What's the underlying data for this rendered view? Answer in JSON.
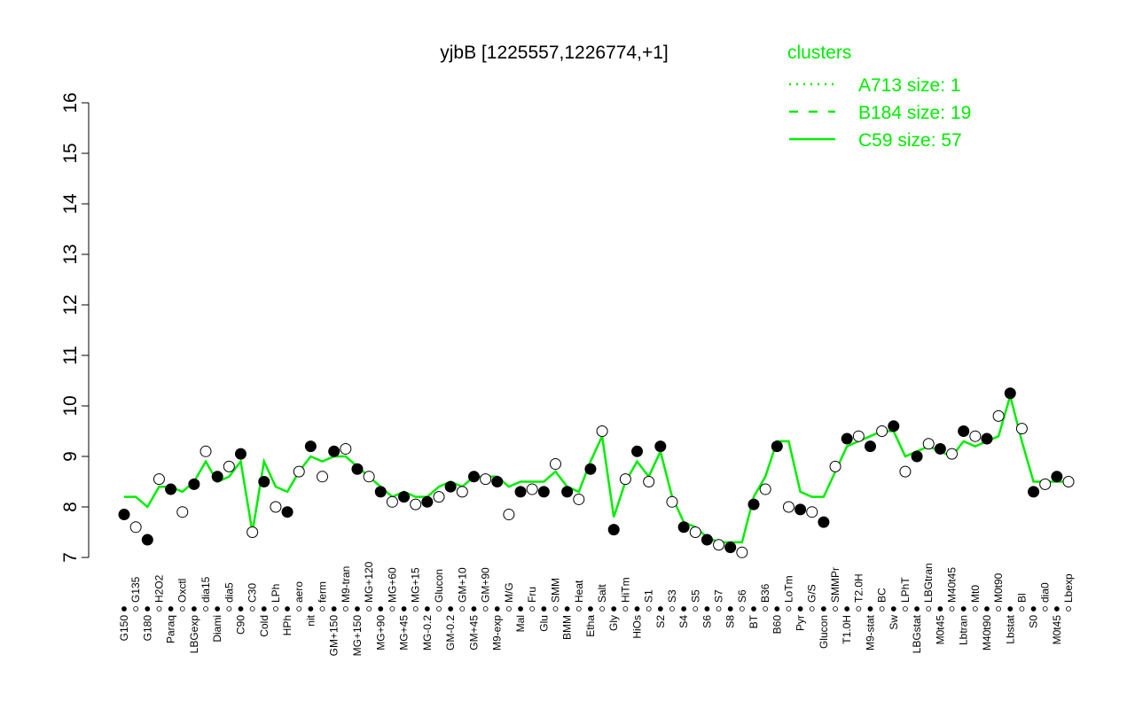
{
  "chart_data": {
    "type": "line",
    "title": "yjbB [1225557,1226774,+1]",
    "legend_title": "clusters",
    "legend": [
      {
        "label": "A713 size: 1",
        "style": "dotted",
        "color": "#00ee00"
      },
      {
        "label": "B184 size: 19",
        "style": "dashed",
        "color": "#00ee00"
      },
      {
        "label": "C59 size: 57",
        "style": "solid",
        "color": "#00ee00"
      }
    ],
    "ylim": [
      7,
      16
    ],
    "yticks": [
      7,
      8,
      9,
      10,
      11,
      12,
      13,
      14,
      15,
      16
    ],
    "categories": [
      "G150",
      "G135",
      "G180",
      "H2O2",
      "Paraq",
      "Oxctl",
      "LBGexp",
      "dia15",
      "Diami",
      "dia5",
      "C90",
      "C30",
      "Cold",
      "LPh",
      "HPh",
      "aero",
      "nit",
      "ferm",
      "GM+150",
      "M9-tran",
      "MG+150",
      "MG+120",
      "MG+90",
      "MG+60",
      "MG+45",
      "MG+15",
      "MG-0.2",
      "Glucon",
      "GM-0.2",
      "GM+10",
      "GM+45",
      "GM+90",
      "M9-exp",
      "M/G",
      "Mal",
      "Fru",
      "Glu",
      "SMM",
      "BMM",
      "Heat",
      "Etha",
      "Salt",
      "Gly",
      "HiTm",
      "HiOs",
      "S1",
      "S2",
      "S3",
      "S4",
      "S5",
      "S6",
      "S7",
      "S8",
      "S6",
      "BT",
      "B36",
      "B60",
      "LoTm",
      "Pyr",
      "G/S",
      "Glucon",
      "SMMPr",
      "T1.0H",
      "T2.0H",
      "M9-stat",
      "BC",
      "Sw",
      "LPhT",
      "LBGstat",
      "LBGtran",
      "M0t45",
      "M40t45",
      "Lbtran",
      "Mt0",
      "M40t90",
      "M0t90",
      "Lbstat",
      "Bl",
      "S0",
      "dia0",
      "M0t45",
      "Lbexp"
    ],
    "series": [
      {
        "name": "expression",
        "color": "#000000",
        "values": [
          7.85,
          7.6,
          7.35,
          8.55,
          8.35,
          7.9,
          8.45,
          9.1,
          8.6,
          8.8,
          9.05,
          7.5,
          8.5,
          8.0,
          7.9,
          8.7,
          9.2,
          8.6,
          9.1,
          9.15,
          8.75,
          8.6,
          8.3,
          8.1,
          8.2,
          8.05,
          8.1,
          8.2,
          8.4,
          8.3,
          8.6,
          8.55,
          8.5,
          7.85,
          8.3,
          8.35,
          8.3,
          8.85,
          8.3,
          8.15,
          8.75,
          9.5,
          7.55,
          8.55,
          9.1,
          8.5,
          9.2,
          8.1,
          7.6,
          7.5,
          7.35,
          7.25,
          7.2,
          7.1,
          8.05,
          8.35,
          9.2,
          8.0,
          7.95,
          7.9,
          7.7,
          8.8,
          9.35,
          9.4,
          9.2,
          9.5,
          9.6,
          8.7,
          9.0,
          9.25,
          9.15,
          9.05,
          9.5,
          9.4,
          9.35,
          9.8,
          10.25,
          9.55,
          8.3,
          8.45,
          8.6,
          8.5
        ]
      },
      {
        "name": "C59",
        "color": "#00ee00",
        "values": [
          8.2,
          8.2,
          8.0,
          8.4,
          8.4,
          8.3,
          8.5,
          8.9,
          8.5,
          8.6,
          8.9,
          7.5,
          8.9,
          8.4,
          8.3,
          8.7,
          9.0,
          8.9,
          9.0,
          9.0,
          8.8,
          8.6,
          8.4,
          8.2,
          8.3,
          8.2,
          8.2,
          8.4,
          8.5,
          8.4,
          8.6,
          8.6,
          8.6,
          8.4,
          8.5,
          8.5,
          8.5,
          8.7,
          8.4,
          8.3,
          8.9,
          9.4,
          7.8,
          8.5,
          8.9,
          8.6,
          9.1,
          8.2,
          7.7,
          7.6,
          7.4,
          7.3,
          7.3,
          7.3,
          8.2,
          8.6,
          9.3,
          9.3,
          8.3,
          8.2,
          8.2,
          8.7,
          9.2,
          9.3,
          9.4,
          9.5,
          9.5,
          9.0,
          9.1,
          9.2,
          9.1,
          9.0,
          9.3,
          9.2,
          9.3,
          9.4,
          10.2,
          9.3,
          8.5,
          8.5,
          8.5,
          8.5
        ]
      }
    ]
  }
}
